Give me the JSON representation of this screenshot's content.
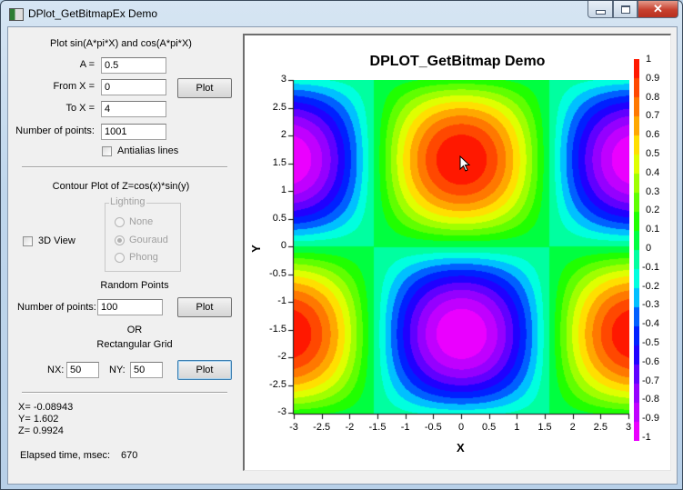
{
  "window": {
    "title": "DPlot_GetBitmapEx Demo",
    "controls": {
      "minimize": "minimize-icon",
      "maximize": "maximize-icon",
      "close": "close-icon"
    }
  },
  "left_panel": {
    "line_plot": {
      "heading": "Plot sin(A*pi*X) and cos(A*pi*X)",
      "a_label": "A =",
      "a_value": "0.5",
      "from_label": "From X =",
      "from_value": "0",
      "to_label": "To X =",
      "to_value": "4",
      "npoints_label": "Number of points:",
      "npoints_value": "1001",
      "antialias_label": "Antialias lines",
      "antialias_checked": false,
      "plot_button": "Plot"
    },
    "contour": {
      "heading": "Contour Plot of Z=cos(x)*sin(y)",
      "view3d_label": "3D View",
      "view3d_checked": false,
      "lighting_title": "Lighting",
      "lighting_options": [
        "None",
        "Gouraud",
        "Phong"
      ],
      "lighting_selected": "Gouraud",
      "random_heading": "Random Points",
      "random_npoints_label": "Number of points:",
      "random_npoints_value": "100",
      "random_plot_button": "Plot",
      "or_label": "OR",
      "grid_heading": "Rectangular Grid",
      "nx_label": "NX:",
      "nx_value": "50",
      "ny_label": "NY:",
      "ny_value": "50",
      "grid_plot_button": "Plot"
    },
    "readout": {
      "x": "X= -0.08943",
      "y": "Y= 1.602",
      "z": "Z= 0.9924",
      "elapsed_label": "Elapsed time, msec:",
      "elapsed_value": "670"
    }
  },
  "chart_data": {
    "type": "heatmap",
    "title": "DPLOT_GetBitmap Demo",
    "function": "Z=cos(x)*sin(y)",
    "xlabel": "X",
    "ylabel": "Y",
    "xlim": [
      -3,
      3
    ],
    "ylim": [
      -3,
      3
    ],
    "x_ticks": [
      "-3",
      "-2.5",
      "-2",
      "-1.5",
      "-1",
      "-0.5",
      "0",
      "0.5",
      "1",
      "1.5",
      "2",
      "2.5",
      "3"
    ],
    "y_ticks": [
      "3",
      "2.5",
      "2",
      "1.5",
      "1",
      "0.5",
      "0",
      "-0.5",
      "-1",
      "-1.5",
      "-2",
      "-2.5",
      "-3"
    ],
    "colorbar": {
      "range": [
        -1,
        1
      ],
      "levels": 20,
      "ticks": [
        "1",
        "0.9",
        "0.8",
        "0.7",
        "0.6",
        "0.5",
        "0.4",
        "0.3",
        "0.2",
        "0.1",
        "0",
        "-0.1",
        "-0.2",
        "-0.3",
        "-0.4",
        "-0.5",
        "-0.6",
        "-0.7",
        "-0.8",
        "-0.9",
        "-1"
      ],
      "colors": {
        "1": "#ff0000",
        "0.8": "#ff6000",
        "0.6": "#ffc000",
        "0.5": "#ffff00",
        "0.3": "#80ff00",
        "0.1": "#00ff00",
        "0": "#00ff80",
        "-0.2": "#00ffff",
        "-0.3": "#0080ff",
        "-0.5": "#0000ff",
        "-0.7": "#8000ff",
        "-1": "#ff00ff"
      }
    },
    "cursor_point": {
      "x": -0.08943,
      "y": 1.602,
      "z": 0.9924
    }
  }
}
